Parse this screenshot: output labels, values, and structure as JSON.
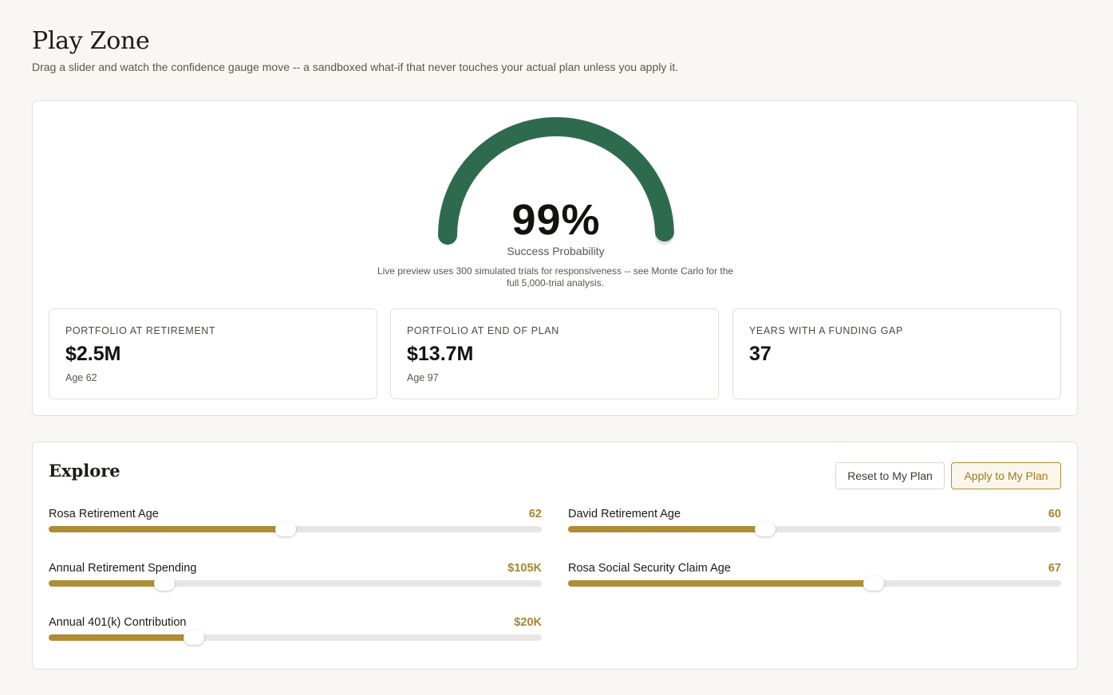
{
  "header": {
    "title": "Play Zone",
    "subtitle": "Drag a slider and watch the confidence gauge move -- a sandboxed what-if that never touches your actual plan unless you apply it."
  },
  "gauge": {
    "value_text": "99%",
    "value_fraction": 0.99,
    "label": "Success Probability",
    "note": "Live preview uses 300 simulated trials for responsiveness -- see Monte Carlo for the full 5,000-trial analysis.",
    "color": "#2e6b4e",
    "track_color": "#e6e3dc"
  },
  "stats": [
    {
      "label": "PORTFOLIO AT RETIREMENT",
      "value": "$2.5M",
      "sub": "Age 62"
    },
    {
      "label": "PORTFOLIO AT END OF PLAN",
      "value": "$13.7M",
      "sub": "Age 97"
    },
    {
      "label": "YEARS WITH A FUNDING GAP",
      "value": "37",
      "sub": ""
    }
  ],
  "explore": {
    "title": "Explore",
    "reset_label": "Reset to My Plan",
    "apply_label": "Apply to My Plan",
    "accent_color": "#b08c35",
    "sliders": [
      {
        "label": "Rosa Retirement Age",
        "value": "62",
        "fraction": 0.48
      },
      {
        "label": "David Retirement Age",
        "value": "60",
        "fraction": 0.4
      },
      {
        "label": "Annual Retirement Spending",
        "value": "$105K",
        "fraction": 0.235
      },
      {
        "label": "Rosa Social Security Claim Age",
        "value": "67",
        "fraction": 0.62
      },
      {
        "label": "Annual 401(k) Contribution",
        "value": "$20K",
        "fraction": 0.295
      }
    ]
  }
}
